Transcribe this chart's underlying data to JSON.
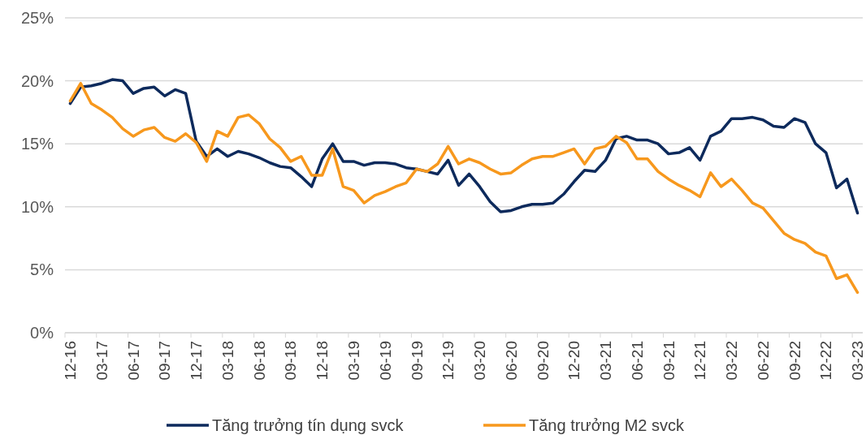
{
  "chart_data": {
    "type": "line",
    "categories": [
      "12-16",
      null,
      null,
      "03-17",
      null,
      null,
      "06-17",
      null,
      null,
      "09-17",
      null,
      null,
      "12-17",
      null,
      null,
      "03-18",
      null,
      null,
      "06-18",
      null,
      null,
      "09-18",
      null,
      null,
      "12-18",
      null,
      null,
      "03-19",
      null,
      null,
      "06-19",
      null,
      null,
      "09-19",
      null,
      null,
      "12-19",
      null,
      null,
      "03-20",
      null,
      null,
      "06-20",
      null,
      null,
      "09-20",
      null,
      null,
      "12-20",
      null,
      null,
      "03-21",
      null,
      null,
      "06-21",
      null,
      null,
      "09-21",
      null,
      null,
      "12-21",
      null,
      null,
      "03-22",
      null,
      null,
      "06-22",
      null,
      null,
      "09-22",
      null,
      null,
      "12-22",
      null,
      null,
      "03-23"
    ],
    "series": [
      {
        "name": "Tăng trưởng tín dụng svck",
        "color": "#0d2a5c",
        "values": [
          18.2,
          19.5,
          19.6,
          19.8,
          20.1,
          20.0,
          19.0,
          19.4,
          19.5,
          18.8,
          19.3,
          19.0,
          15.2,
          14.0,
          14.6,
          14.0,
          14.4,
          14.2,
          13.9,
          13.5,
          13.2,
          13.1,
          12.4,
          11.6,
          13.8,
          15.0,
          13.6,
          13.6,
          13.3,
          13.5,
          13.5,
          13.4,
          13.1,
          13.0,
          12.8,
          12.6,
          13.7,
          11.7,
          12.6,
          11.6,
          10.4,
          9.6,
          9.7,
          10.0,
          10.2,
          10.2,
          10.3,
          11.0,
          12.0,
          12.9,
          12.8,
          13.7,
          15.4,
          15.6,
          15.3,
          15.3,
          15.0,
          14.2,
          14.3,
          14.7,
          13.7,
          15.6,
          16.0,
          17.0,
          17.0,
          17.1,
          16.9,
          16.4,
          16.3,
          17.0,
          16.7,
          15.0,
          14.3,
          11.5,
          12.2,
          9.5
        ]
      },
      {
        "name": "Tăng trưởng M2 svck",
        "color": "#f7981d",
        "values": [
          18.4,
          19.8,
          18.2,
          17.7,
          17.1,
          16.2,
          15.6,
          16.1,
          16.3,
          15.5,
          15.2,
          15.8,
          15.1,
          13.6,
          16.0,
          15.6,
          17.1,
          17.3,
          16.6,
          15.4,
          14.7,
          13.6,
          14.0,
          12.5,
          12.5,
          14.6,
          11.6,
          11.3,
          10.3,
          10.9,
          11.2,
          11.6,
          11.9,
          13.0,
          12.8,
          13.4,
          14.8,
          13.4,
          13.8,
          13.5,
          13.0,
          12.6,
          12.7,
          13.3,
          13.8,
          14.0,
          14.0,
          14.3,
          14.6,
          13.4,
          14.6,
          14.8,
          15.6,
          15.1,
          13.8,
          13.8,
          12.8,
          12.2,
          11.7,
          11.3,
          10.8,
          12.7,
          11.6,
          12.2,
          11.3,
          10.3,
          9.9,
          8.9,
          7.9,
          7.4,
          7.1,
          6.4,
          6.1,
          4.3,
          4.6,
          3.2
        ]
      }
    ],
    "ylim": [
      0,
      25
    ],
    "yticks": [
      {
        "value": 0,
        "label": "0%"
      },
      {
        "value": 5,
        "label": "5%"
      },
      {
        "value": 10,
        "label": "10%"
      },
      {
        "value": 15,
        "label": "15%"
      },
      {
        "value": 20,
        "label": "20%"
      },
      {
        "value": 25,
        "label": "25%"
      }
    ],
    "grid": "y",
    "legend": "bottom",
    "marker": "none",
    "line_style": "solid"
  }
}
